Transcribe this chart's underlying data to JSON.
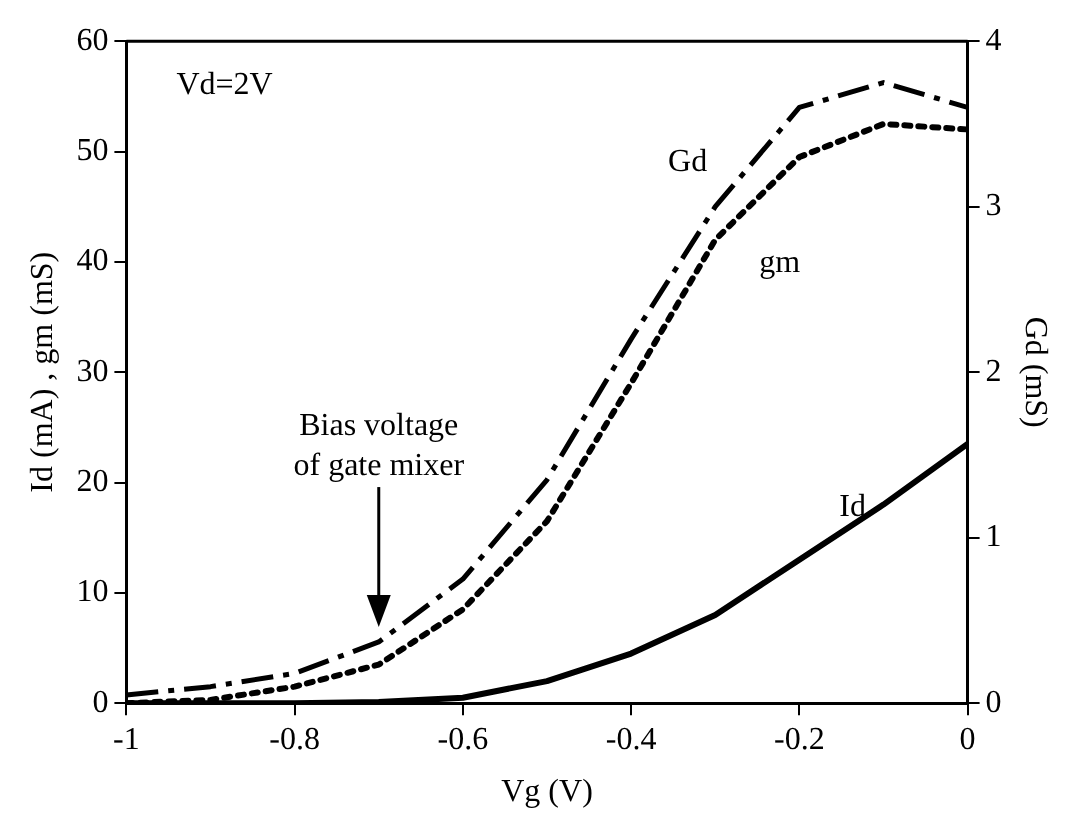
{
  "chart_data": {
    "type": "line",
    "xlabel": "Vg (V)",
    "ylabel": "Id (mA) , gm (mS)",
    "y2label": "Gd (mS)",
    "annotations": [
      "Vd=2V",
      "Bias voltage of gate mixer"
    ],
    "x": [
      -1,
      -0.9,
      -0.8,
      -0.7,
      -0.6,
      -0.5,
      -0.4,
      -0.3,
      -0.2,
      -0.1,
      0
    ],
    "series": [
      {
        "name": "Gd",
        "color": "#000000",
        "axis": "y2",
        "line_style": "dashed",
        "values": [
          0.05,
          0.1,
          0.18,
          0.37,
          0.75,
          1.35,
          2.2,
          3.0,
          3.6,
          3.75,
          3.6
        ]
      },
      {
        "name": "gm",
        "color": "#000000",
        "line_style": "dotted",
        "values": [
          0,
          0.3,
          1.5,
          3.5,
          8.5,
          16.5,
          29,
          42,
          49.5,
          52.5,
          52
        ]
      },
      {
        "name": "Id",
        "color": "#000000",
        "line_style": "solid",
        "values": [
          0,
          0,
          0,
          0.1,
          0.5,
          2,
          4.5,
          8,
          13,
          18,
          23.5
        ]
      }
    ],
    "xlim": [
      -1,
      0
    ],
    "xticks": [
      -1,
      -0.8,
      -0.6,
      -0.4,
      -0.2,
      0
    ],
    "ylim": [
      0,
      60
    ],
    "yticks": [
      0,
      10,
      20,
      30,
      40,
      50,
      60
    ],
    "y2lim": [
      0,
      4
    ],
    "y2ticks": [
      0,
      1,
      2,
      3,
      4
    ],
    "grid": false,
    "legend": false,
    "marker": "none"
  }
}
